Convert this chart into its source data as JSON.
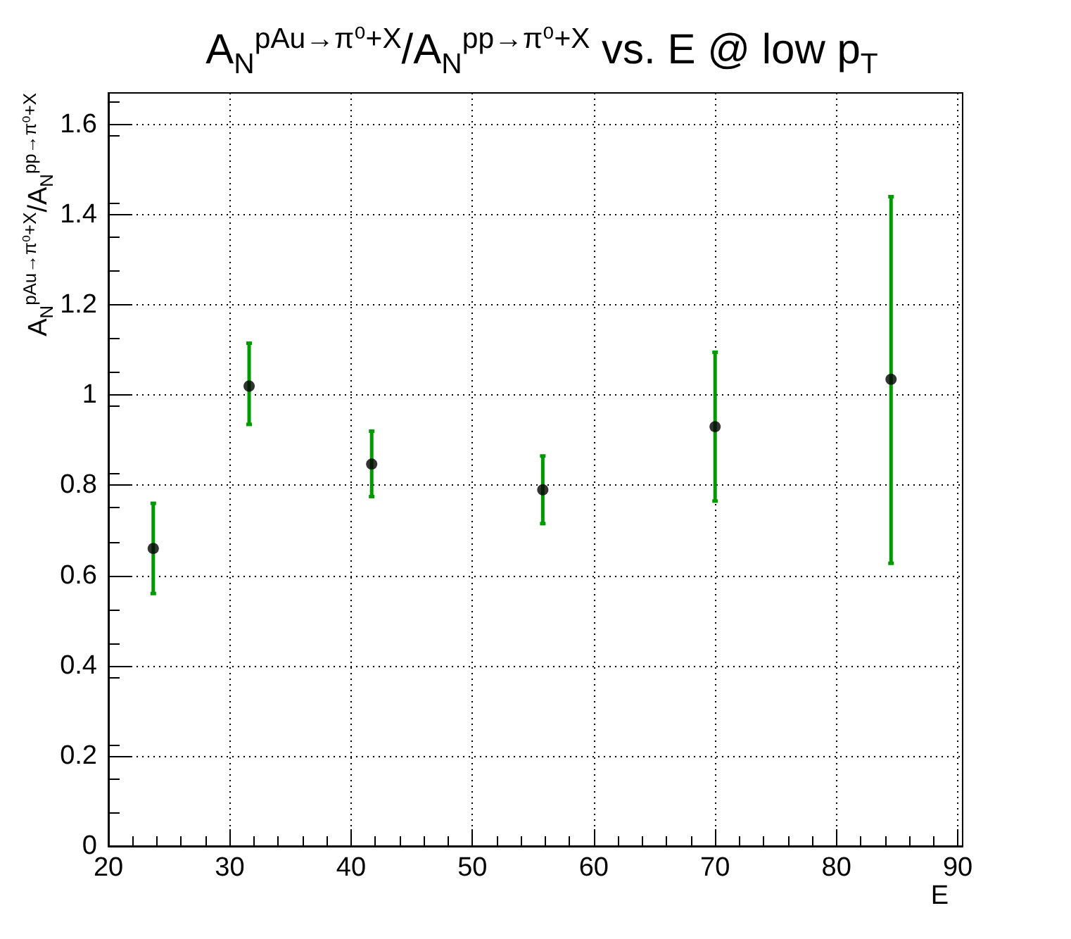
{
  "chart_data": {
    "type": "scatter",
    "title": "A$_{N}$$^{pAu→π⁰+X}$/A$_{N}$$^{pp→π⁰+X}$ vs. E @ low p$_{T}$",
    "xlabel": "E",
    "ylabel": "A$_{N}$$^{pAu→π⁰+X}$/A$_{N}$$^{pp→π⁰+X}$",
    "x": [
      23.7,
      31.6,
      41.7,
      55.8,
      70.0,
      84.5
    ],
    "series": [
      {
        "color": "#000000",
        "values": [
          0.66,
          1.02,
          0.847,
          0.79,
          0.93,
          1.035
        ],
        "errors": [
          [
            0.56,
            0.76
          ],
          [
            0.935,
            1.115
          ],
          [
            0.775,
            0.92
          ],
          [
            0.715,
            0.865
          ],
          [
            0.765,
            1.095
          ],
          [
            0.627,
            1.44
          ]
        ]
      }
    ],
    "xlim": [
      20,
      90.4
    ],
    "xticks": [
      20,
      30,
      40,
      50,
      60,
      70,
      80,
      90
    ],
    "ylim": [
      0,
      1.67
    ],
    "yticks": [
      0,
      0.2,
      0.4,
      0.6,
      0.8,
      1,
      1.2,
      1.4,
      1.6
    ],
    "grid": true,
    "marker": "circle"
  }
}
